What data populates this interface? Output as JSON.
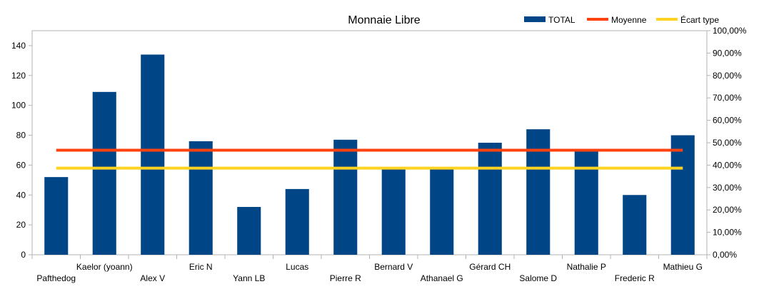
{
  "chart_data": {
    "type": "bar",
    "title": "Monnaie Libre",
    "categories": [
      "Pafthedog",
      "Kaelor (yoann)",
      "Alex V",
      "Eric N",
      "Yann LB",
      "Lucas",
      "Pierre R",
      "Bernard V",
      "Athanael G",
      "Gérard CH",
      "Salome D",
      "Nathalie P",
      "Frederic R",
      "Mathieu G"
    ],
    "series": [
      {
        "name": "TOTAL",
        "type": "bar",
        "axis": "left",
        "color": "#004586",
        "values": [
          52,
          109,
          134,
          76,
          32,
          44,
          77,
          58,
          58,
          75,
          84,
          70,
          40,
          80
        ]
      },
      {
        "name": "Moyenne",
        "type": "line",
        "axis": "left",
        "color": "#ff420e",
        "values": [
          70,
          70,
          70,
          70,
          70,
          70,
          70,
          70,
          70,
          70,
          70,
          70,
          70,
          70
        ]
      },
      {
        "name": "Écart type",
        "type": "line",
        "axis": "left",
        "color": "#ffd320",
        "values": [
          58,
          58,
          58,
          58,
          58,
          58,
          58,
          58,
          58,
          58,
          58,
          58,
          58,
          58
        ]
      }
    ],
    "ylim": [
      0,
      150
    ],
    "yticks": [
      "0",
      "20",
      "40",
      "60",
      "80",
      "100",
      "120",
      "140"
    ],
    "y2lim": [
      0,
      1
    ],
    "y2ticks": [
      "0,00%",
      "10,00%",
      "20,00%",
      "30,00%",
      "40,00%",
      "50,00%",
      "60,00%",
      "70,00%",
      "80,00%",
      "90,00%",
      "100,00%"
    ],
    "legend_position": "top-right",
    "grid": false
  }
}
